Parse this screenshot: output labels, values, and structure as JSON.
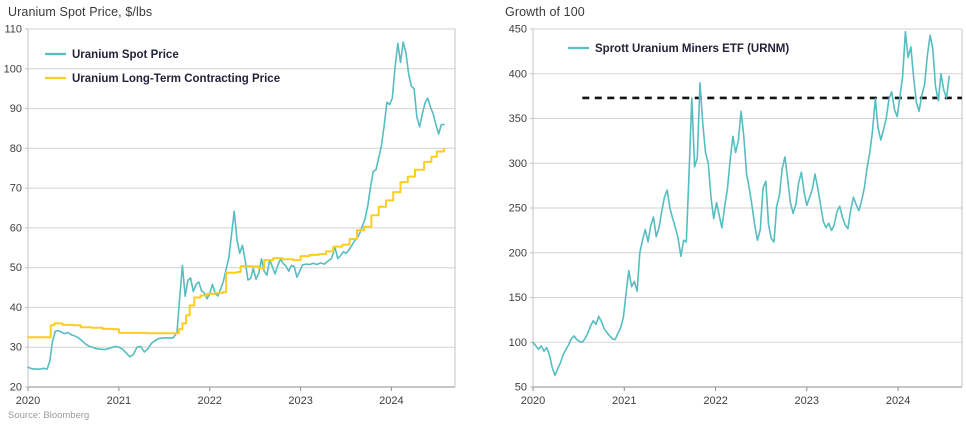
{
  "page": {
    "source_note": "Source: Bloomberg"
  },
  "palette": {
    "teal": "#56BDC0",
    "yellow": "#FCCE21",
    "reference_black": "#141414",
    "gridline": "#d2d2d2",
    "border": "#c3c3c3",
    "axis": "#8e8e8e",
    "tick_label": "#3e3e3e",
    "legend_text": "#23233a"
  },
  "chart_data": [
    {
      "type": "line",
      "title": "Uranium Spot Price, $/lbs",
      "xlabel": "",
      "ylabel": "",
      "grid": "horizontal",
      "legend_position": "top-left-inside",
      "xlim": [
        2020,
        2024.7
      ],
      "ylim": [
        20,
        110
      ],
      "y_ticks": [
        20,
        30,
        40,
        50,
        60,
        70,
        80,
        90,
        100,
        110
      ],
      "x_ticks": [
        2020,
        2021,
        2022,
        2023,
        2024
      ],
      "x_tick_labels": [
        "2020",
        "2021",
        "2022",
        "2023",
        "2024"
      ],
      "series": [
        {
          "name": "Uranium Spot Price",
          "color": "#56BDC0",
          "step": false,
          "x": [
            2020.0,
            2020.04,
            2020.08,
            2020.13,
            2020.17,
            2020.21,
            2020.24,
            2020.27,
            2020.3,
            2020.33,
            2020.36,
            2020.4,
            2020.44,
            2020.48,
            2020.52,
            2020.56,
            2020.6,
            2020.64,
            2020.68,
            2020.72,
            2020.76,
            2020.8,
            2020.84,
            2020.88,
            2020.92,
            2020.96,
            2021.0,
            2021.04,
            2021.08,
            2021.12,
            2021.16,
            2021.2,
            2021.24,
            2021.28,
            2021.32,
            2021.36,
            2021.4,
            2021.44,
            2021.48,
            2021.52,
            2021.56,
            2021.6,
            2021.64,
            2021.67,
            2021.7,
            2021.73,
            2021.76,
            2021.79,
            2021.82,
            2021.85,
            2021.88,
            2021.91,
            2021.94,
            2021.97,
            2022.0,
            2022.03,
            2022.06,
            2022.09,
            2022.12,
            2022.15,
            2022.18,
            2022.21,
            2022.24,
            2022.27,
            2022.3,
            2022.33,
            2022.36,
            2022.39,
            2022.42,
            2022.45,
            2022.48,
            2022.51,
            2022.54,
            2022.57,
            2022.6,
            2022.63,
            2022.66,
            2022.69,
            2022.72,
            2022.75,
            2022.78,
            2022.81,
            2022.84,
            2022.87,
            2022.9,
            2022.93,
            2022.96,
            2022.99,
            2023.02,
            2023.06,
            2023.1,
            2023.14,
            2023.18,
            2023.22,
            2023.26,
            2023.3,
            2023.34,
            2023.38,
            2023.41,
            2023.44,
            2023.47,
            2023.5,
            2023.53,
            2023.56,
            2023.59,
            2023.62,
            2023.65,
            2023.68,
            2023.71,
            2023.74,
            2023.77,
            2023.8,
            2023.83,
            2023.86,
            2023.89,
            2023.92,
            2023.95,
            2023.98,
            2024.01,
            2024.04,
            2024.07,
            2024.1,
            2024.13,
            2024.16,
            2024.19,
            2024.22,
            2024.25,
            2024.28,
            2024.31,
            2024.34,
            2024.37,
            2024.4,
            2024.43,
            2024.46,
            2024.49,
            2024.52,
            2024.55,
            2024.58
          ],
          "values": [
            25.0,
            24.6,
            24.5,
            24.5,
            24.7,
            24.5,
            26.5,
            31.5,
            34.0,
            34.2,
            33.9,
            33.4,
            33.7,
            33.1,
            32.8,
            32.3,
            31.5,
            30.7,
            30.2,
            29.9,
            29.6,
            29.5,
            29.4,
            29.6,
            29.9,
            30.2,
            30.0,
            29.5,
            28.6,
            27.6,
            28.2,
            30.0,
            30.2,
            28.8,
            29.6,
            31.0,
            31.7,
            32.2,
            32.3,
            32.4,
            32.3,
            32.4,
            33.8,
            42.5,
            50.5,
            42.8,
            46.8,
            47.4,
            44.0,
            45.8,
            46.4,
            44.2,
            43.6,
            42.2,
            43.4,
            45.8,
            43.6,
            42.9,
            44.6,
            46.5,
            49.6,
            52.4,
            58.2,
            64.2,
            57.0,
            53.6,
            55.6,
            52.0,
            46.9,
            47.3,
            49.8,
            47.1,
            48.6,
            52.2,
            49.1,
            48.1,
            52.0,
            50.2,
            48.4,
            50.6,
            52.2,
            51.0,
            50.4,
            49.1,
            50.6,
            50.3,
            47.6,
            49.0,
            50.7,
            50.9,
            50.8,
            51.1,
            50.8,
            51.2,
            50.9,
            51.6,
            52.3,
            55.0,
            52.3,
            53.0,
            54.0,
            53.6,
            54.4,
            55.4,
            56.6,
            57.4,
            58.6,
            60.4,
            62.3,
            65.6,
            70.2,
            74.2,
            74.6,
            77.6,
            80.6,
            85.6,
            91.6,
            91.0,
            92.6,
            100.2,
            106.4,
            101.6,
            106.7,
            104.0,
            98.6,
            95.6,
            95.0,
            88.0,
            85.4,
            88.6,
            91.4,
            92.6,
            90.4,
            88.6,
            86.0,
            83.6,
            86.0,
            86.0
          ]
        },
        {
          "name": "Uranium Long-Term Contracting Price",
          "color": "#FCCE21",
          "step": true,
          "x": [
            2020.0,
            2020.22,
            2020.25,
            2020.29,
            2020.38,
            2020.5,
            2020.58,
            2020.7,
            2020.82,
            2020.94,
            2021.0,
            2021.3,
            2021.62,
            2021.66,
            2021.7,
            2021.74,
            2021.78,
            2021.83,
            2021.9,
            2021.97,
            2022.06,
            2022.14,
            2022.18,
            2022.3,
            2022.34,
            2022.46,
            2022.54,
            2022.6,
            2022.7,
            2022.8,
            2022.92,
            2023.0,
            2023.1,
            2023.2,
            2023.28,
            2023.36,
            2023.46,
            2023.54,
            2023.62,
            2023.7,
            2023.78,
            2023.86,
            2023.94,
            2024.02,
            2024.1,
            2024.18,
            2024.26,
            2024.36,
            2024.44,
            2024.5,
            2024.58
          ],
          "values": [
            32.5,
            32.5,
            35.5,
            36.0,
            35.6,
            35.5,
            35.0,
            34.9,
            34.6,
            34.5,
            33.6,
            33.5,
            33.5,
            34.5,
            36.0,
            38.0,
            40.5,
            42.5,
            43.0,
            43.4,
            43.6,
            43.8,
            48.7,
            48.9,
            50.4,
            50.3,
            49.9,
            51.9,
            52.4,
            52.1,
            51.9,
            52.9,
            53.2,
            53.4,
            54.1,
            55.3,
            55.8,
            57.2,
            59.4,
            60.3,
            63.2,
            65.3,
            66.9,
            69.0,
            71.5,
            72.9,
            74.6,
            76.6,
            77.9,
            79.2,
            79.9
          ]
        }
      ]
    },
    {
      "type": "line",
      "title": "Growth of 100",
      "xlabel": "",
      "ylabel": "",
      "grid": "horizontal",
      "legend_position": "top-left-inside",
      "xlim": [
        2020,
        2024.7
      ],
      "ylim": [
        50,
        450
      ],
      "y_ticks": [
        50,
        100,
        150,
        200,
        250,
        300,
        350,
        400,
        450
      ],
      "x_ticks": [
        2020,
        2021,
        2022,
        2023,
        2024
      ],
      "x_tick_labels": [
        "2020",
        "2021",
        "2022",
        "2023",
        "2024"
      ],
      "reference_line": {
        "value": 373,
        "style": "dashed",
        "color": "#141414",
        "x_start": 2020.54
      },
      "series": [
        {
          "name": "Sprott Uranium Miners ETF (URNM)",
          "color": "#56BDC0",
          "step": false,
          "x": [
            2020.0,
            2020.03,
            2020.06,
            2020.09,
            2020.12,
            2020.15,
            2020.18,
            2020.21,
            2020.24,
            2020.27,
            2020.3,
            2020.33,
            2020.36,
            2020.39,
            2020.42,
            2020.45,
            2020.48,
            2020.51,
            2020.54,
            2020.57,
            2020.6,
            2020.63,
            2020.66,
            2020.69,
            2020.72,
            2020.75,
            2020.78,
            2020.81,
            2020.84,
            2020.87,
            2020.9,
            2020.93,
            2020.96,
            2020.99,
            2021.02,
            2021.05,
            2021.08,
            2021.11,
            2021.14,
            2021.17,
            2021.2,
            2021.23,
            2021.26,
            2021.29,
            2021.32,
            2021.35,
            2021.38,
            2021.41,
            2021.44,
            2021.47,
            2021.5,
            2021.53,
            2021.56,
            2021.59,
            2021.62,
            2021.65,
            2021.68,
            2021.71,
            2021.74,
            2021.77,
            2021.8,
            2021.83,
            2021.86,
            2021.89,
            2021.92,
            2021.95,
            2021.98,
            2022.01,
            2022.04,
            2022.07,
            2022.1,
            2022.13,
            2022.16,
            2022.19,
            2022.22,
            2022.25,
            2022.28,
            2022.31,
            2022.34,
            2022.37,
            2022.4,
            2022.43,
            2022.46,
            2022.49,
            2022.52,
            2022.55,
            2022.58,
            2022.61,
            2022.64,
            2022.67,
            2022.7,
            2022.73,
            2022.76,
            2022.79,
            2022.82,
            2022.85,
            2022.88,
            2022.91,
            2022.94,
            2022.97,
            2023.0,
            2023.03,
            2023.06,
            2023.09,
            2023.12,
            2023.15,
            2023.18,
            2023.21,
            2023.24,
            2023.27,
            2023.3,
            2023.33,
            2023.36,
            2023.39,
            2023.42,
            2023.45,
            2023.48,
            2023.51,
            2023.54,
            2023.57,
            2023.6,
            2023.63,
            2023.66,
            2023.69,
            2023.72,
            2023.75,
            2023.78,
            2023.81,
            2023.84,
            2023.87,
            2023.9,
            2023.93,
            2023.96,
            2023.99,
            2024.02,
            2024.05,
            2024.08,
            2024.11,
            2024.14,
            2024.17,
            2024.2,
            2024.23,
            2024.26,
            2024.29,
            2024.32,
            2024.35,
            2024.38,
            2024.41,
            2024.44,
            2024.47,
            2024.5,
            2024.53,
            2024.56
          ],
          "values": [
            100,
            96,
            92,
            96,
            90,
            94,
            86,
            72,
            63,
            70,
            77,
            86,
            92,
            97,
            104,
            107,
            103,
            101,
            100,
            104,
            110,
            118,
            124,
            120,
            129,
            123,
            115,
            111,
            107,
            104,
            103,
            110,
            116,
            128,
            155,
            180,
            162,
            168,
            157,
            200,
            214,
            226,
            212,
            230,
            240,
            218,
            228,
            246,
            262,
            270,
            250,
            238,
            228,
            216,
            196,
            214,
            212,
            290,
            373,
            296,
            306,
            390,
            344,
            312,
            300,
            262,
            238,
            256,
            242,
            228,
            252,
            271,
            304,
            330,
            312,
            326,
            358,
            330,
            288,
            272,
            252,
            230,
            214,
            226,
            272,
            280,
            232,
            216,
            212,
            252,
            264,
            294,
            307,
            282,
            256,
            244,
            254,
            278,
            290,
            268,
            253,
            262,
            271,
            288,
            272,
            254,
            235,
            228,
            233,
            225,
            231,
            246,
            252,
            240,
            231,
            227,
            247,
            262,
            254,
            247,
            258,
            272,
            295,
            312,
            336,
            372,
            340,
            326,
            337,
            350,
            372,
            380,
            360,
            352,
            374,
            398,
            447,
            418,
            430,
            396,
            368,
            358,
            376,
            388,
            420,
            443,
            428,
            386,
            370,
            400,
            382,
            373,
            397
          ]
        }
      ]
    }
  ]
}
